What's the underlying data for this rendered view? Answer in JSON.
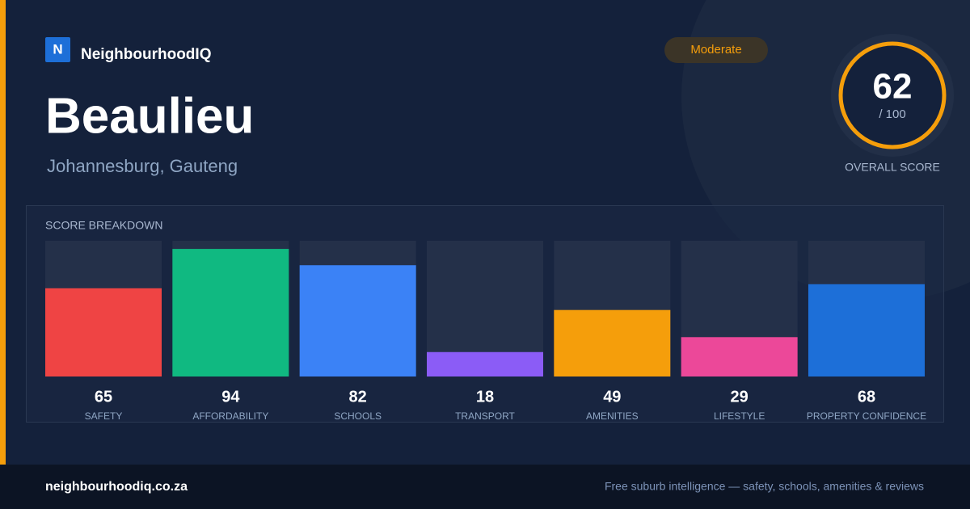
{
  "brand": {
    "logo_letter": "N",
    "name": "NeighbourhoodIQ"
  },
  "header": {
    "title": "Beaulieu",
    "subtitle": "Johannesburg, Gauteng",
    "badge": "Moderate"
  },
  "overall_score": {
    "value": 62,
    "max_label": "/ 100",
    "label": "OVERALL SCORE"
  },
  "chart_data": {
    "type": "bar",
    "title": "SCORE BREAKDOWN",
    "categories": [
      "SAFETY",
      "AFFORDABILITY",
      "SCHOOLS",
      "TRANSPORT",
      "AMENITIES",
      "LIFESTYLE",
      "PROPERTY CONFIDENCE"
    ],
    "values": [
      65,
      94,
      82,
      18,
      49,
      29,
      68
    ],
    "colors": [
      "#ef4444",
      "#10b981",
      "#3b82f6",
      "#8b5cf6",
      "#f59e0b",
      "#ec4899",
      "#1d6fd8"
    ],
    "ylim": [
      0,
      100
    ]
  },
  "footer": {
    "site": "neighbourhoodiq.co.za",
    "tagline": "Free suburb intelligence — safety, schools, amenities & reviews"
  }
}
